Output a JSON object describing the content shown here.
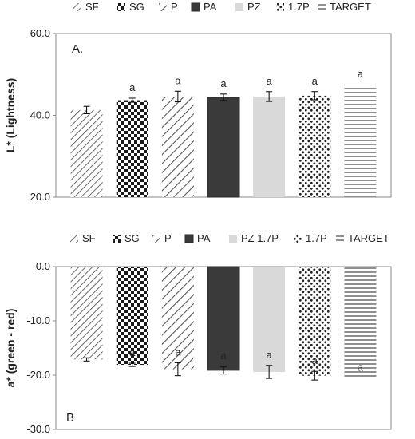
{
  "chart_data": [
    {
      "type": "bar",
      "panel_label": "A.",
      "categories": [
        "SF",
        "SG",
        "P",
        "PA",
        "PZ",
        "1.7P",
        "TARGET"
      ],
      "legend": [
        "SF",
        "SG",
        "P",
        "PA",
        "PZ",
        "1.7P",
        "TARGET"
      ],
      "legend_position": "top",
      "values": [
        41.3,
        43.7,
        44.6,
        44.4,
        44.6,
        44.8,
        47.5
      ],
      "errors": [
        0.9,
        0.5,
        1.3,
        0.8,
        1.2,
        1.0,
        0
      ],
      "sig_labels": [
        "",
        "a",
        "a",
        "a",
        "a",
        "a",
        "a"
      ],
      "ylabel": "L* (Lightness)",
      "ylim": [
        20,
        60
      ],
      "yticks": [
        "20.0",
        "40.0",
        "60.0"
      ],
      "yticks_values": [
        20,
        40,
        60
      ]
    },
    {
      "type": "bar",
      "panel_label": "B",
      "categories": [
        "SF",
        "SG",
        "P",
        "PA",
        "PZ 1.7P",
        "1.7P",
        "TARGET"
      ],
      "legend": [
        "SF",
        "SG",
        "P",
        "PA",
        "PZ 1.7P",
        "1.7P",
        "TARGET"
      ],
      "legend_position": "top",
      "values": [
        -17.1,
        -18.1,
        -18.9,
        -19.1,
        -19.4,
        -20.1,
        -20.5
      ],
      "errors": [
        0.3,
        0.3,
        1.2,
        0.7,
        1.2,
        0.8,
        0
      ],
      "sig_labels": [
        "",
        "a",
        "a",
        "a",
        "a",
        "a",
        "a"
      ],
      "ylabel": "a* (green - red)",
      "ylim": [
        -30,
        0
      ],
      "yticks": [
        "-30.0",
        "-20.0",
        "-10.0",
        "0.0"
      ],
      "yticks_values": [
        -30,
        -20,
        -10,
        0
      ]
    }
  ],
  "colors": {
    "bar_fill": "#3a3a3a",
    "pz_fill": "#d9d9d9",
    "axis": "#888888",
    "text": "#222222"
  }
}
